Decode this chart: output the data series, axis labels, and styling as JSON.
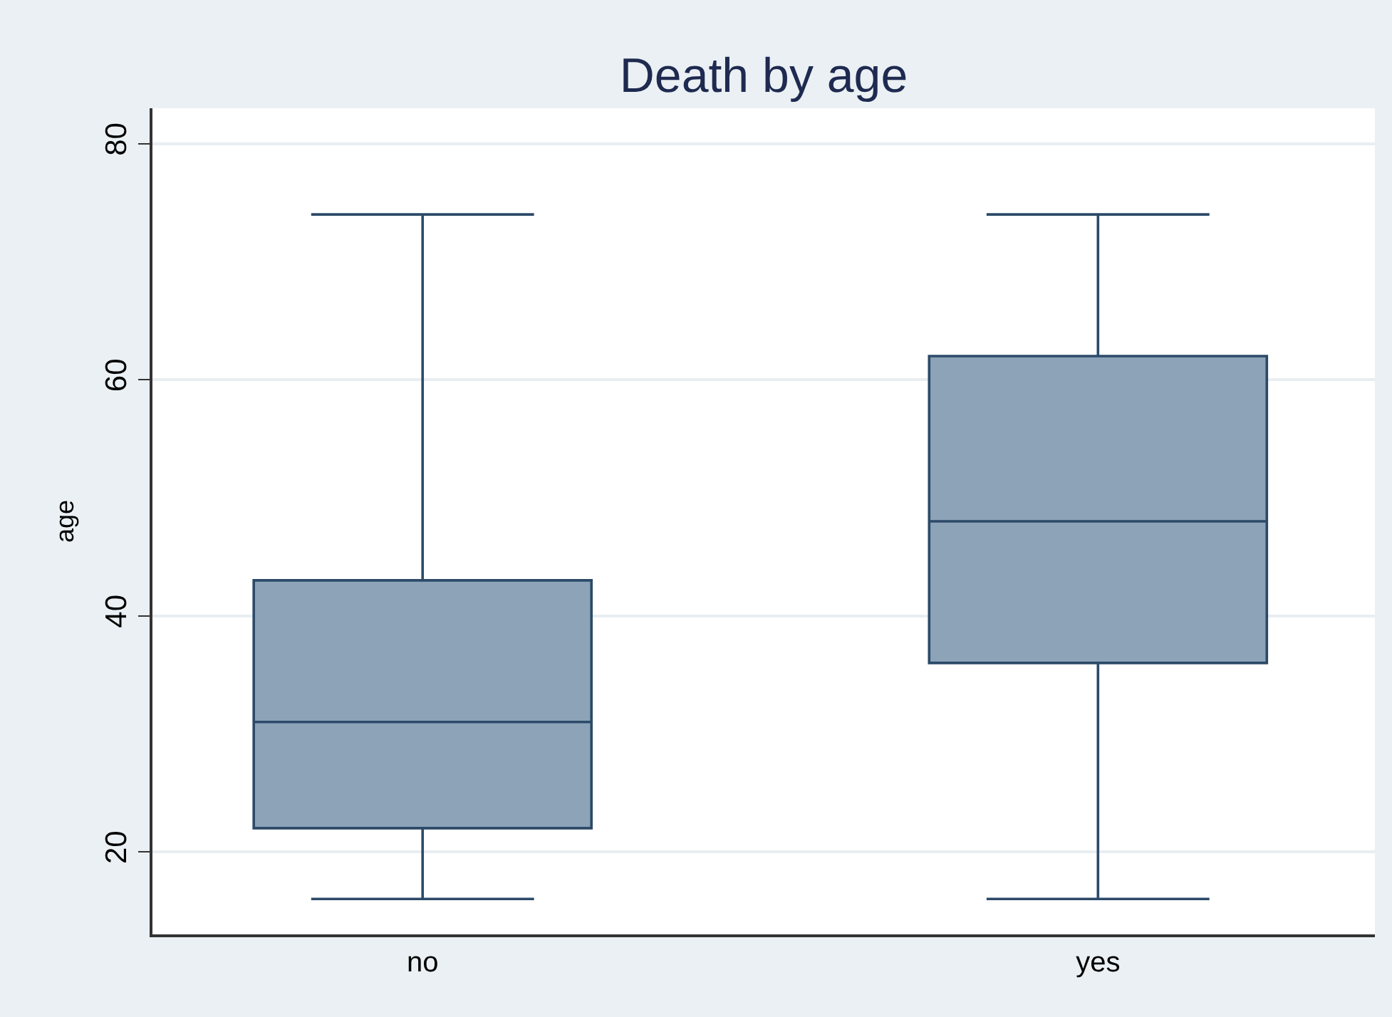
{
  "chart_data": {
    "type": "box",
    "title": "Death by age",
    "ylabel": "age",
    "categories": [
      "no",
      "yes"
    ],
    "series": [
      {
        "color": "#8ca3b8",
        "boxes": [
          {
            "low": 16,
            "q1": 22,
            "median": 31,
            "q3": 43,
            "high": 74
          },
          {
            "low": 16,
            "q1": 36,
            "median": 48,
            "q3": 62,
            "high": 74
          }
        ]
      }
    ],
    "ylim": [
      13,
      83
    ],
    "yticks": [
      20,
      40,
      60,
      80
    ],
    "grid": "y"
  }
}
